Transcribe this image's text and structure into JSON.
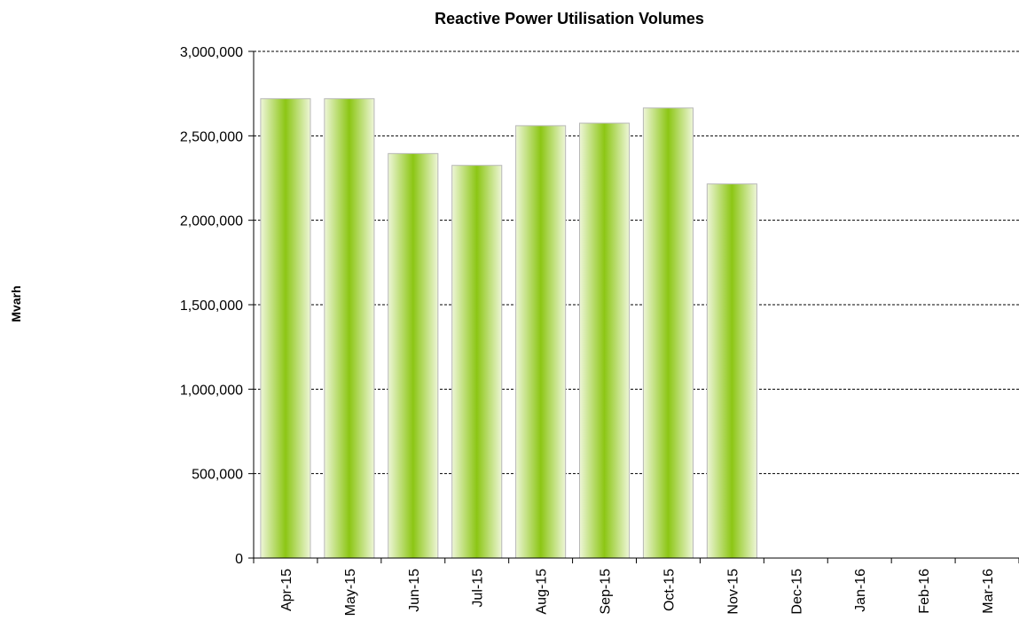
{
  "chart_data": {
    "type": "bar",
    "title": "Reactive Power Utilisation  Volumes",
    "xlabel": "",
    "ylabel": "Mvarh",
    "categories": [
      "Apr-15",
      "May-15",
      "Jun-15",
      "Jul-15",
      "Aug-15",
      "Sep-15",
      "Oct-15",
      "Nov-15",
      "Dec-15",
      "Jan-16",
      "Feb-16",
      "Mar-16"
    ],
    "values": [
      2720000,
      2720000,
      2395000,
      2325000,
      2560000,
      2575000,
      2665000,
      2215000,
      null,
      null,
      null,
      null
    ],
    "ylim": [
      0,
      3000000
    ],
    "yticks": [
      0,
      500000,
      1000000,
      1500000,
      2000000,
      2500000,
      3000000
    ],
    "ytick_labels": [
      "0",
      "500,000",
      "1,000,000",
      "1,500,000",
      "2,000,000",
      "2,500,000",
      "3,000,000"
    ],
    "grid": "horizontal-dashed",
    "legend": "none",
    "colors": {
      "bar_center": "#8cc614",
      "bar_edge": "#eef6d8",
      "bar_stroke": "#b8b8b8"
    }
  }
}
